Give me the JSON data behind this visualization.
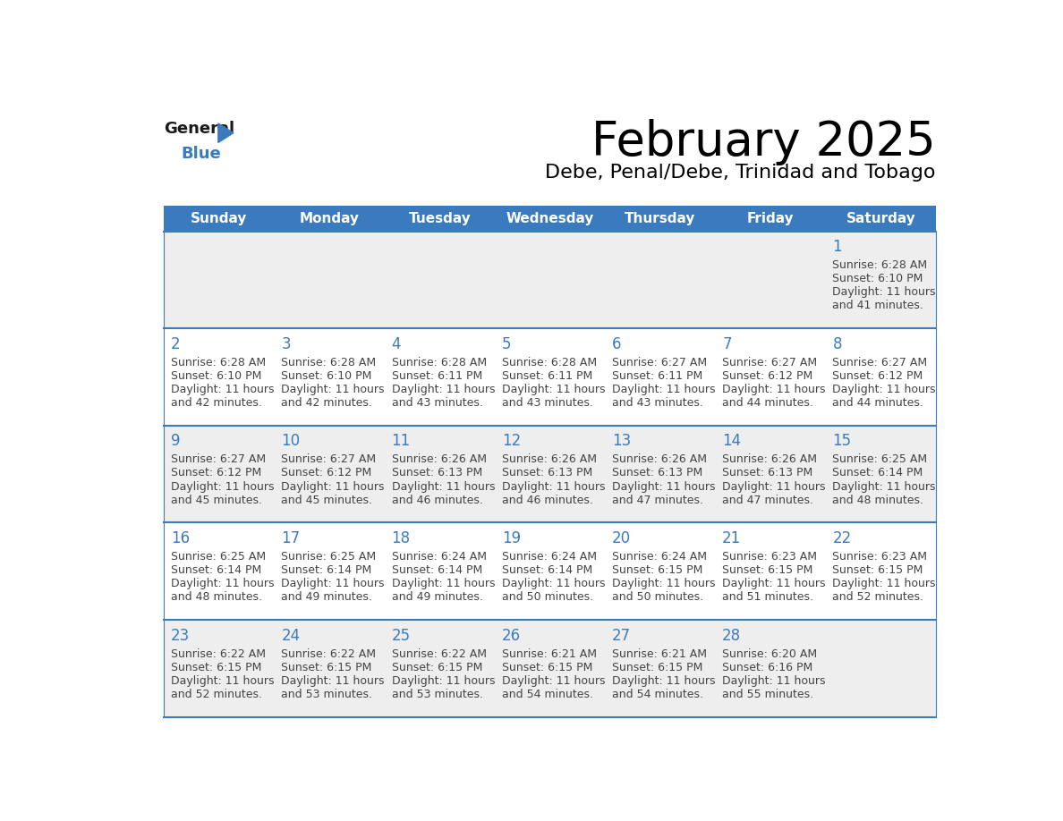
{
  "title": "February 2025",
  "subtitle": "Debe, Penal/Debe, Trinidad and Tobago",
  "days_of_week": [
    "Sunday",
    "Monday",
    "Tuesday",
    "Wednesday",
    "Thursday",
    "Friday",
    "Saturday"
  ],
  "header_bg": "#3a7bbf",
  "header_text": "#ffffff",
  "row_bg_odd": "#eeeeee",
  "row_bg_even": "#ffffff",
  "separator_color": "#3a7bbf",
  "day_number_color": "#3a7bbf",
  "cell_text_color": "#444444",
  "calendar_data": [
    [
      null,
      null,
      null,
      null,
      null,
      null,
      {
        "day": 1,
        "sunrise": "6:28 AM",
        "sunset": "6:10 PM",
        "daylight": "11 hours and 41 minutes."
      }
    ],
    [
      {
        "day": 2,
        "sunrise": "6:28 AM",
        "sunset": "6:10 PM",
        "daylight": "11 hours and 42 minutes."
      },
      {
        "day": 3,
        "sunrise": "6:28 AM",
        "sunset": "6:10 PM",
        "daylight": "11 hours and 42 minutes."
      },
      {
        "day": 4,
        "sunrise": "6:28 AM",
        "sunset": "6:11 PM",
        "daylight": "11 hours and 43 minutes."
      },
      {
        "day": 5,
        "sunrise": "6:28 AM",
        "sunset": "6:11 PM",
        "daylight": "11 hours and 43 minutes."
      },
      {
        "day": 6,
        "sunrise": "6:27 AM",
        "sunset": "6:11 PM",
        "daylight": "11 hours and 43 minutes."
      },
      {
        "day": 7,
        "sunrise": "6:27 AM",
        "sunset": "6:12 PM",
        "daylight": "11 hours and 44 minutes."
      },
      {
        "day": 8,
        "sunrise": "6:27 AM",
        "sunset": "6:12 PM",
        "daylight": "11 hours and 44 minutes."
      }
    ],
    [
      {
        "day": 9,
        "sunrise": "6:27 AM",
        "sunset": "6:12 PM",
        "daylight": "11 hours and 45 minutes."
      },
      {
        "day": 10,
        "sunrise": "6:27 AM",
        "sunset": "6:12 PM",
        "daylight": "11 hours and 45 minutes."
      },
      {
        "day": 11,
        "sunrise": "6:26 AM",
        "sunset": "6:13 PM",
        "daylight": "11 hours and 46 minutes."
      },
      {
        "day": 12,
        "sunrise": "6:26 AM",
        "sunset": "6:13 PM",
        "daylight": "11 hours and 46 minutes."
      },
      {
        "day": 13,
        "sunrise": "6:26 AM",
        "sunset": "6:13 PM",
        "daylight": "11 hours and 47 minutes."
      },
      {
        "day": 14,
        "sunrise": "6:26 AM",
        "sunset": "6:13 PM",
        "daylight": "11 hours and 47 minutes."
      },
      {
        "day": 15,
        "sunrise": "6:25 AM",
        "sunset": "6:14 PM",
        "daylight": "11 hours and 48 minutes."
      }
    ],
    [
      {
        "day": 16,
        "sunrise": "6:25 AM",
        "sunset": "6:14 PM",
        "daylight": "11 hours and 48 minutes."
      },
      {
        "day": 17,
        "sunrise": "6:25 AM",
        "sunset": "6:14 PM",
        "daylight": "11 hours and 49 minutes."
      },
      {
        "day": 18,
        "sunrise": "6:24 AM",
        "sunset": "6:14 PM",
        "daylight": "11 hours and 49 minutes."
      },
      {
        "day": 19,
        "sunrise": "6:24 AM",
        "sunset": "6:14 PM",
        "daylight": "11 hours and 50 minutes."
      },
      {
        "day": 20,
        "sunrise": "6:24 AM",
        "sunset": "6:15 PM",
        "daylight": "11 hours and 50 minutes."
      },
      {
        "day": 21,
        "sunrise": "6:23 AM",
        "sunset": "6:15 PM",
        "daylight": "11 hours and 51 minutes."
      },
      {
        "day": 22,
        "sunrise": "6:23 AM",
        "sunset": "6:15 PM",
        "daylight": "11 hours and 52 minutes."
      }
    ],
    [
      {
        "day": 23,
        "sunrise": "6:22 AM",
        "sunset": "6:15 PM",
        "daylight": "11 hours and 52 minutes."
      },
      {
        "day": 24,
        "sunrise": "6:22 AM",
        "sunset": "6:15 PM",
        "daylight": "11 hours and 53 minutes."
      },
      {
        "day": 25,
        "sunrise": "6:22 AM",
        "sunset": "6:15 PM",
        "daylight": "11 hours and 53 minutes."
      },
      {
        "day": 26,
        "sunrise": "6:21 AM",
        "sunset": "6:15 PM",
        "daylight": "11 hours and 54 minutes."
      },
      {
        "day": 27,
        "sunrise": "6:21 AM",
        "sunset": "6:15 PM",
        "daylight": "11 hours and 54 minutes."
      },
      {
        "day": 28,
        "sunrise": "6:20 AM",
        "sunset": "6:16 PM",
        "daylight": "11 hours and 55 minutes."
      },
      null
    ]
  ],
  "logo_triangle_color": "#3a7bbf",
  "fig_width": 11.88,
  "fig_height": 9.18,
  "dpi": 100
}
